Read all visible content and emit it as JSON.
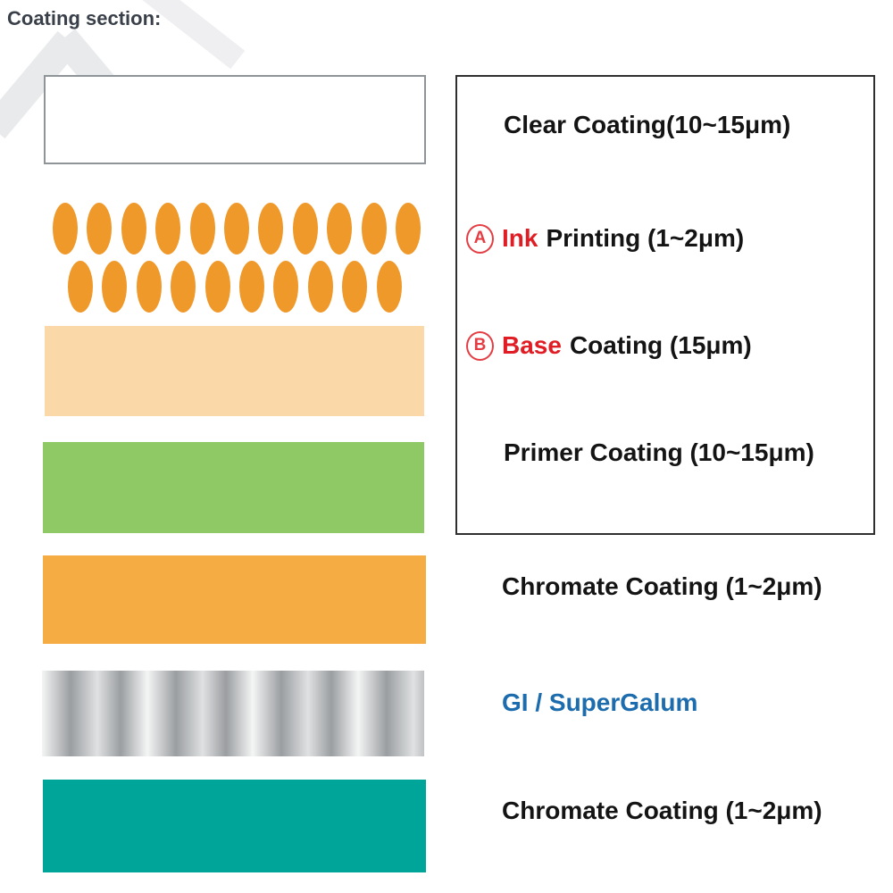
{
  "title": "Coating section:",
  "colors": {
    "title_text": "#3a4049",
    "label_text": "#141414",
    "red_text": "#e01d24",
    "blue_text": "#1c6cae",
    "ink_dot": "#f0992b",
    "base_bar": "#fad8a7",
    "primer_bar": "#8fc966",
    "chromate_bar": "#f5ad43",
    "substrate_light": "#f4f5f5",
    "substrate_dark": "#9b9ea1",
    "bottom_bar": "#00a59a",
    "clear_bar_fill": "#ffffff",
    "clear_bar_border": "#8f9499",
    "legend_border": "#2f2f2f"
  },
  "legend": {
    "clear": {
      "text": "Clear Coating(10~15μm)"
    },
    "ink": {
      "marker": "A",
      "highlight": "Ink",
      "rest": "Printing (1~2μm)"
    },
    "base": {
      "marker": "B",
      "highlight": "Base",
      "rest": "Coating (15μm)"
    },
    "primer": {
      "text": "Primer Coating (10~15μm)"
    },
    "chromate_top": {
      "text": "Chromate Coating (1~2μm)"
    },
    "substrate": {
      "text": "GI / SuperGalum"
    },
    "chromate_bottom": {
      "text": "Chromate Coating (1~2μm)"
    }
  },
  "ink_dots": {
    "top_count": 11,
    "bottom_count": 10
  }
}
